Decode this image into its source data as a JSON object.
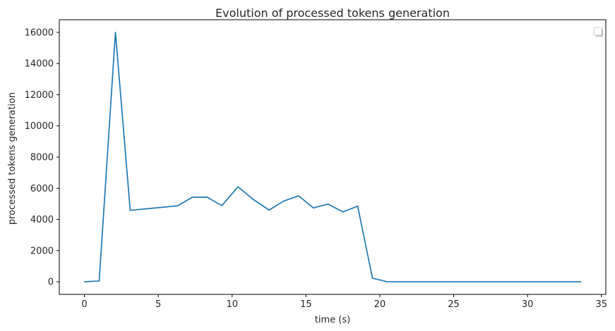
{
  "chart_data": {
    "type": "line",
    "title": "Evolution of processed tokens generation",
    "xlabel": "time (s)",
    "ylabel": "processed tokens generation",
    "xlim": [
      -1.7,
      35.3
    ],
    "ylim": [
      -810,
      16810
    ],
    "x_ticks": [
      0,
      5,
      10,
      15,
      20,
      25,
      30,
      35
    ],
    "y_ticks": [
      0,
      2000,
      4000,
      6000,
      8000,
      10000,
      12000,
      14000,
      16000
    ],
    "grid": false,
    "legend": "top-right (empty)",
    "series": [
      {
        "color": "#1f77b4",
        "x": [
          0,
          1,
          2.1,
          3.1,
          6.3,
          7.3,
          8.3,
          9.3,
          10.4,
          11.4,
          12.5,
          13.5,
          14.5,
          15.5,
          16.5,
          17.5,
          18.5,
          19.5,
          20.5,
          21.5,
          22.5,
          23.5,
          24.5,
          25.5,
          26.5,
          27.5,
          28.5,
          29.5,
          30.5,
          31.5,
          32.5,
          33.6
        ],
        "y": [
          0,
          50,
          16000,
          4580,
          4870,
          5420,
          5430,
          4880,
          6090,
          5300,
          4600,
          5180,
          5510,
          4740,
          4980,
          4480,
          4850,
          230,
          0,
          0,
          0,
          0,
          0,
          0,
          0,
          0,
          0,
          0,
          0,
          0,
          0,
          0
        ]
      }
    ]
  }
}
